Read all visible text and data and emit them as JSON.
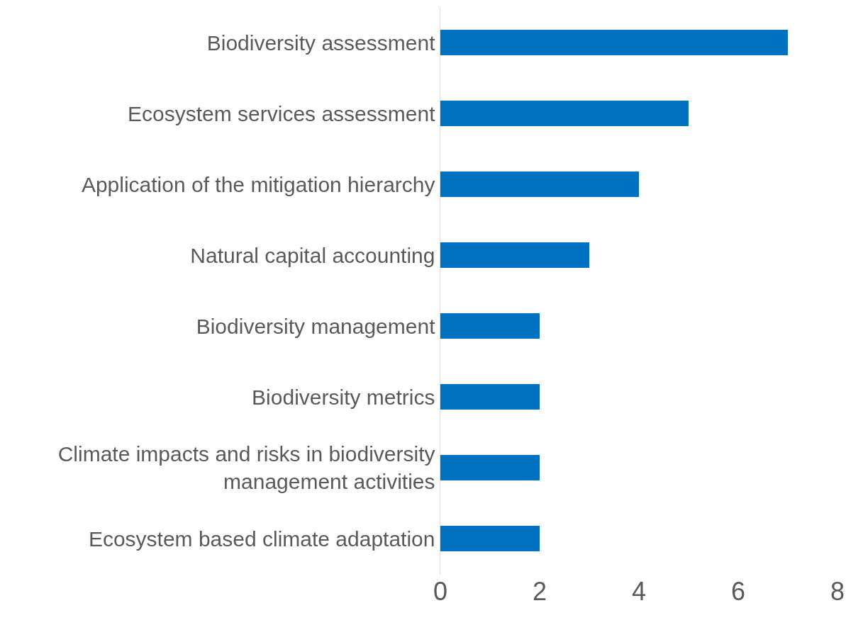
{
  "chart_data": {
    "type": "bar",
    "orientation": "horizontal",
    "categories": [
      "Biodiversity assessment",
      "Ecosystem services assessment",
      "Application of the mitigation hierarchy",
      "Natural capital accounting",
      "Biodiversity management",
      "Biodiversity metrics",
      "Climate impacts and risks in biodiversity management activities",
      "Ecosystem based climate adaptation"
    ],
    "values": [
      7,
      5,
      4,
      3,
      2,
      2,
      2,
      2
    ],
    "color": "#0070c0",
    "xlim": [
      0,
      8
    ],
    "xticks": [
      0,
      2,
      4,
      6,
      8
    ],
    "grid": false,
    "legend": false
  }
}
